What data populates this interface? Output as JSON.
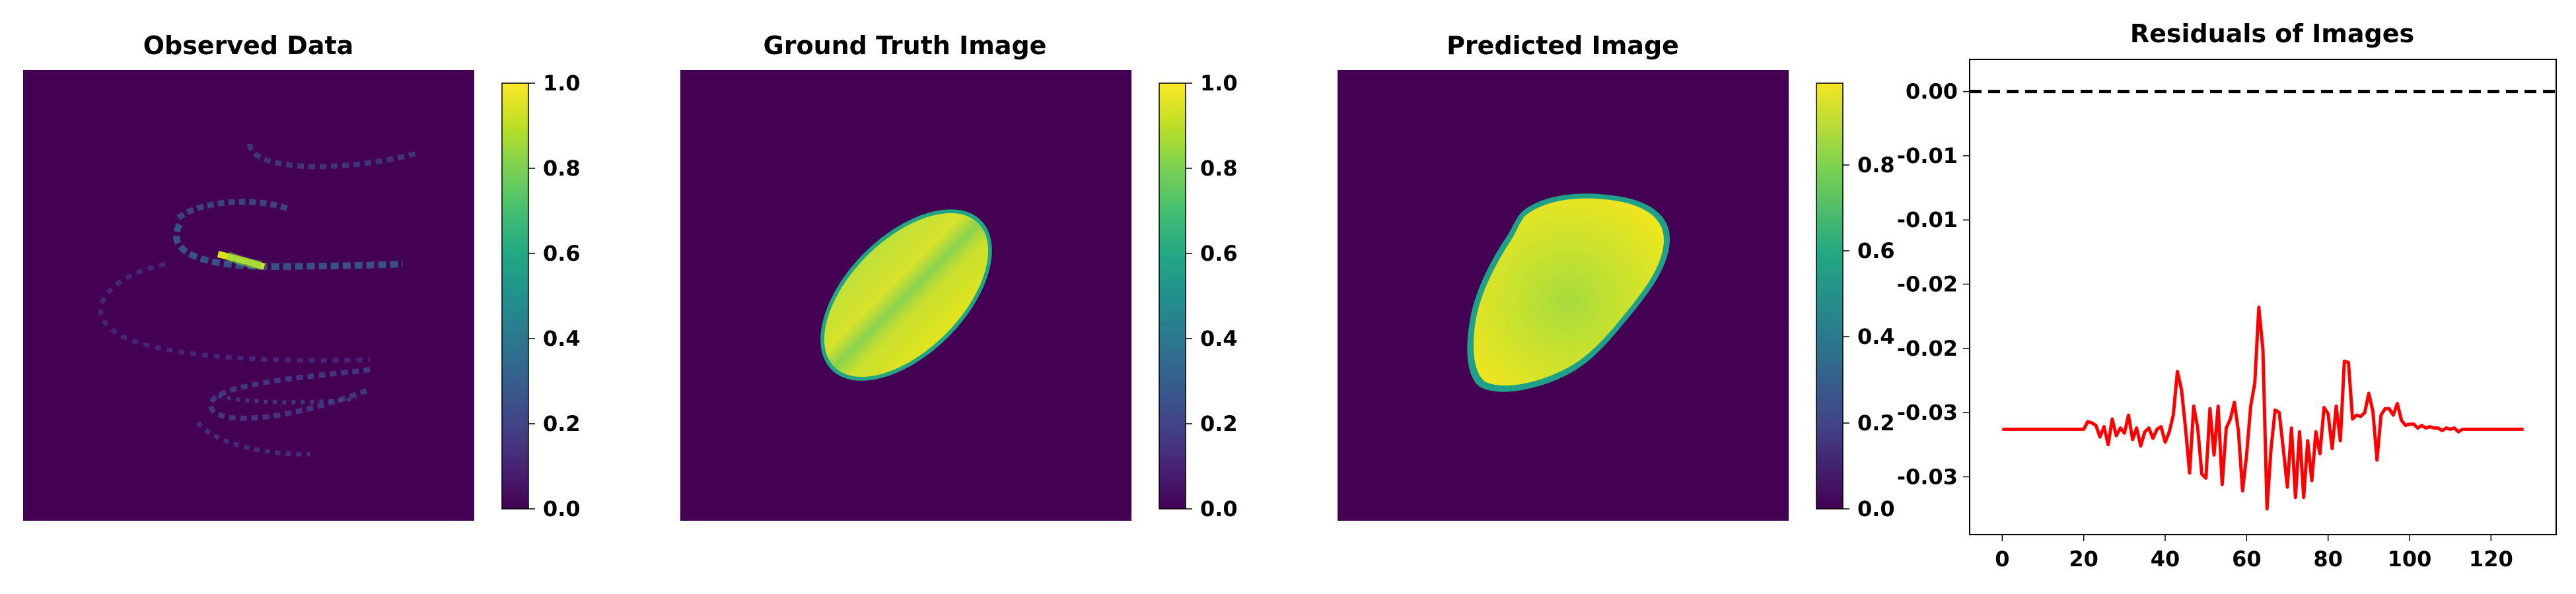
{
  "colormap": "viridis",
  "colors": {
    "background_dark": "#440154",
    "ellipse_yellow": "#e4e41a",
    "ellipse_green": "#84d44b",
    "residual_line": "#ff0000",
    "zero_line": "#000000"
  },
  "panels": [
    {
      "title": "Observed Data",
      "colorbar_ticks": [
        "0.0",
        "0.2",
        "0.4",
        "0.6",
        "0.8",
        "1.0"
      ]
    },
    {
      "title": "Ground Truth Image",
      "colorbar_ticks": [
        "0.0",
        "0.2",
        "0.4",
        "0.6",
        "0.8",
        "1.0"
      ]
    },
    {
      "title": "Predicted Image",
      "colorbar_ticks": [
        "0.0",
        "0.2",
        "0.4",
        "0.6",
        "0.8"
      ]
    }
  ],
  "chart_data": [
    {
      "type": "heatmap",
      "title": "Observed Data",
      "content": "sparse streaks of low intensity, one bright segment",
      "colorbar_range": [
        0.0,
        1.0
      ],
      "colorbar_ticks": [
        "0.0",
        "0.2",
        "0.4",
        "0.6",
        "0.8",
        "1.0"
      ]
    },
    {
      "type": "heatmap",
      "title": "Ground Truth Image",
      "content": "tilted ellipse of high intensity on dark background",
      "colorbar_range": [
        0.0,
        1.0
      ],
      "colorbar_ticks": [
        "0.0",
        "0.2",
        "0.4",
        "0.6",
        "0.8",
        "1.0"
      ]
    },
    {
      "type": "heatmap",
      "title": "Predicted Image",
      "content": "irregular blob of high intensity on dark background",
      "colorbar_range": [
        0.0,
        0.99
      ],
      "colorbar_ticks": [
        "0.0",
        "0.2",
        "0.4",
        "0.6",
        "0.8"
      ]
    },
    {
      "type": "line",
      "title": "Residuals of Images",
      "xlim": [
        -8,
        136
      ],
      "ylim": [
        -0.0345,
        0.0025
      ],
      "xticks": [
        "0",
        "20",
        "40",
        "60",
        "80",
        "100",
        "120"
      ],
      "yticks": [
        "0.00",
        "-0.01",
        "-0.01",
        "-0.02",
        "-0.02",
        "-0.03",
        "-0.03"
      ],
      "reference_line": {
        "y": 0.0,
        "style": "dashed",
        "color": "#000000"
      },
      "series": [
        {
          "color": "#ff0000",
          "x": [
            0,
            20,
            21,
            22,
            23,
            24,
            25,
            26,
            27,
            28,
            29,
            30,
            31,
            32,
            33,
            34,
            35,
            36,
            37,
            38,
            39,
            40,
            41,
            42,
            43,
            44,
            45,
            46,
            47,
            48,
            49,
            50,
            51,
            52,
            53,
            54,
            55,
            56,
            57,
            58,
            59,
            60,
            61,
            62,
            63,
            64,
            65,
            66,
            67,
            68,
            69,
            70,
            71,
            72,
            73,
            74,
            75,
            76,
            77,
            78,
            79,
            80,
            81,
            82,
            83,
            84,
            85,
            86,
            87,
            88,
            89,
            90,
            91,
            92,
            93,
            94,
            95,
            96,
            97,
            98,
            99,
            100,
            101,
            102,
            103,
            104,
            105,
            106,
            107,
            108,
            109,
            110,
            111,
            112,
            113,
            128
          ],
          "y": [
            -0.0263,
            -0.0263,
            -0.0257,
            -0.0258,
            -0.026,
            -0.0269,
            -0.0261,
            -0.0275,
            -0.0255,
            -0.0268,
            -0.0262,
            -0.0266,
            -0.0252,
            -0.0271,
            -0.0262,
            -0.0276,
            -0.0265,
            -0.0262,
            -0.027,
            -0.0263,
            -0.0261,
            -0.0273,
            -0.0265,
            -0.0252,
            -0.0218,
            -0.0232,
            -0.0262,
            -0.0297,
            -0.0245,
            -0.0262,
            -0.0298,
            -0.0301,
            -0.0247,
            -0.0283,
            -0.0245,
            -0.0306,
            -0.0262,
            -0.0255,
            -0.0242,
            -0.0265,
            -0.0311,
            -0.0283,
            -0.0245,
            -0.0227,
            -0.0168,
            -0.0201,
            -0.0325,
            -0.0278,
            -0.0248,
            -0.025,
            -0.0278,
            -0.0308,
            -0.0262,
            -0.0316,
            -0.0265,
            -0.0316,
            -0.0272,
            -0.0303,
            -0.0265,
            -0.0282,
            -0.0246,
            -0.0251,
            -0.0278,
            -0.0245,
            -0.0272,
            -0.021,
            -0.0211,
            -0.0255,
            -0.0252,
            -0.0253,
            -0.025,
            -0.0235,
            -0.0249,
            -0.0287,
            -0.0252,
            -0.0247,
            -0.0247,
            -0.0252,
            -0.0243,
            -0.0256,
            -0.026,
            -0.0259,
            -0.0259,
            -0.0262,
            -0.026,
            -0.0262,
            -0.0261,
            -0.0262,
            -0.0262,
            -0.0264,
            -0.0262,
            -0.0263,
            -0.0262,
            -0.0265,
            -0.0263,
            -0.0263
          ]
        }
      ]
    }
  ]
}
